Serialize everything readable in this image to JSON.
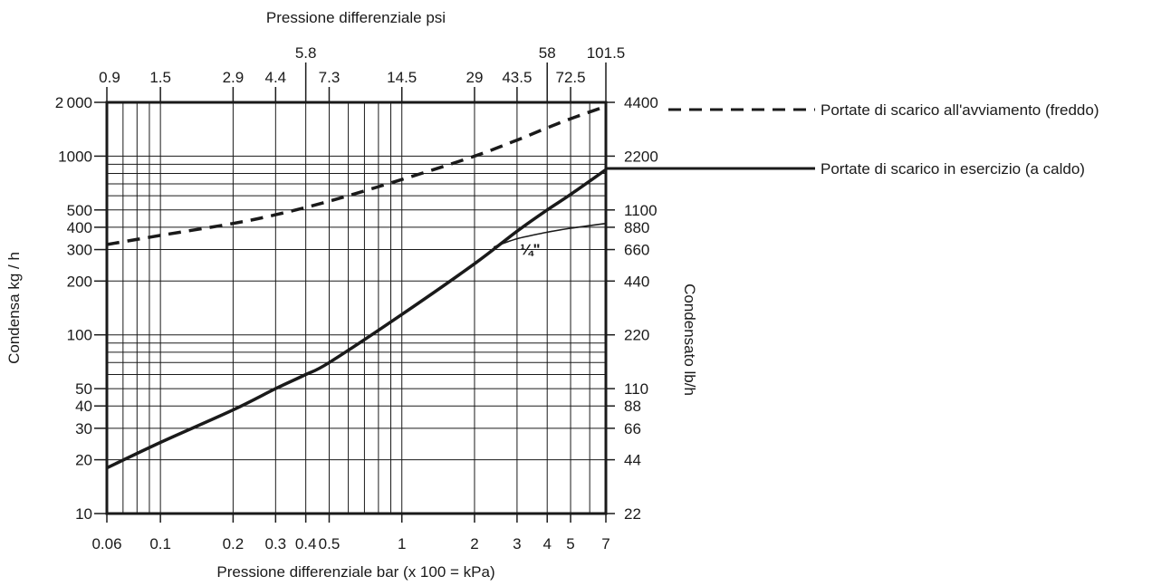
{
  "chart_data": {
    "type": "line",
    "title": "Pressione differenziale psi",
    "xlabel": "Pressione differenziale bar (x 100 = kPa)",
    "ylabel": "Condensa kg / h",
    "y2label": "Condensato lb/h",
    "x_scale": "log",
    "y_scale": "log",
    "xlim": [
      0.06,
      7
    ],
    "ylim": [
      10,
      2000
    ],
    "x_ticks": [
      0.06,
      0.1,
      0.2,
      0.3,
      0.4,
      0.5,
      1,
      2,
      3,
      4,
      5,
      7
    ],
    "x_tick_labels": [
      "0.06",
      "0.1",
      "0.2",
      "0.3",
      "0.4",
      "0.5",
      "1",
      "2",
      "3",
      "4",
      "5",
      "7"
    ],
    "x_grid": [
      0.06,
      0.07,
      0.08,
      0.09,
      0.1,
      0.2,
      0.3,
      0.4,
      0.5,
      0.6,
      0.7,
      0.8,
      0.9,
      1,
      2,
      3,
      4,
      5,
      6,
      7
    ],
    "y_ticks": [
      10,
      20,
      30,
      40,
      50,
      100,
      200,
      300,
      400,
      500,
      1000,
      2000
    ],
    "y_tick_labels": [
      "10",
      "20",
      "30",
      "40",
      "50",
      "100",
      "200",
      "300",
      "400",
      "500",
      "1000",
      "2 000"
    ],
    "y_grid": [
      10,
      20,
      30,
      40,
      50,
      60,
      70,
      80,
      90,
      100,
      200,
      300,
      400,
      500,
      600,
      700,
      800,
      900,
      1000,
      2000
    ],
    "top_ticks": [
      {
        "x": 0.06,
        "label": "0.9",
        "row": 1
      },
      {
        "x": 0.1,
        "label": "1.5",
        "row": 1
      },
      {
        "x": 0.2,
        "label": "2.9",
        "row": 1
      },
      {
        "x": 0.3,
        "label": "4.4",
        "row": 1
      },
      {
        "x": 0.4,
        "label": "5.8",
        "row": 0
      },
      {
        "x": 0.5,
        "label": "7.3",
        "row": 1
      },
      {
        "x": 1,
        "label": "14.5",
        "row": 1
      },
      {
        "x": 2,
        "label": "29",
        "row": 1
      },
      {
        "x": 3,
        "label": "43.5",
        "row": 1
      },
      {
        "x": 4,
        "label": "58",
        "row": 0
      },
      {
        "x": 5,
        "label": "72.5",
        "row": 1
      },
      {
        "x": 7,
        "label": "101.5",
        "row": 0
      }
    ],
    "right_ticks": [
      {
        "y": 10,
        "label": "22"
      },
      {
        "y": 20,
        "label": "44"
      },
      {
        "y": 30,
        "label": "66"
      },
      {
        "y": 40,
        "label": "88"
      },
      {
        "y": 50,
        "label": "110"
      },
      {
        "y": 100,
        "label": "220"
      },
      {
        "y": 200,
        "label": "440"
      },
      {
        "y": 300,
        "label": "660"
      },
      {
        "y": 400,
        "label": "880"
      },
      {
        "y": 500,
        "label": "1100"
      },
      {
        "y": 1000,
        "label": "2200"
      },
      {
        "y": 2000,
        "label": "4400"
      }
    ],
    "series": [
      {
        "name": "Portate di scarico all'avviamento (freddo)",
        "style": "dashed",
        "x": [
          0.06,
          0.1,
          0.2,
          0.3,
          0.5,
          1,
          2,
          3,
          4,
          5,
          7
        ],
        "y": [
          320,
          360,
          420,
          470,
          560,
          740,
          1000,
          1230,
          1440,
          1620,
          1900
        ]
      },
      {
        "name": "Portate di scarico in esercizio (a caldo)",
        "style": "solid-thick",
        "x": [
          0.06,
          0.1,
          0.2,
          0.3,
          0.4,
          0.5,
          1,
          2,
          3,
          4,
          5,
          7
        ],
        "y": [
          18,
          25,
          38,
          50,
          60,
          70,
          130,
          250,
          380,
          500,
          610,
          840
        ]
      },
      {
        "name": "¼\"",
        "style": "solid-thin",
        "x": [
          2.4,
          3,
          4,
          5,
          7
        ],
        "y": [
          310,
          345,
          375,
          395,
          420
        ]
      }
    ],
    "annotations": [
      {
        "text": "¼\"",
        "x": 3.4,
        "y": 282
      }
    ]
  }
}
